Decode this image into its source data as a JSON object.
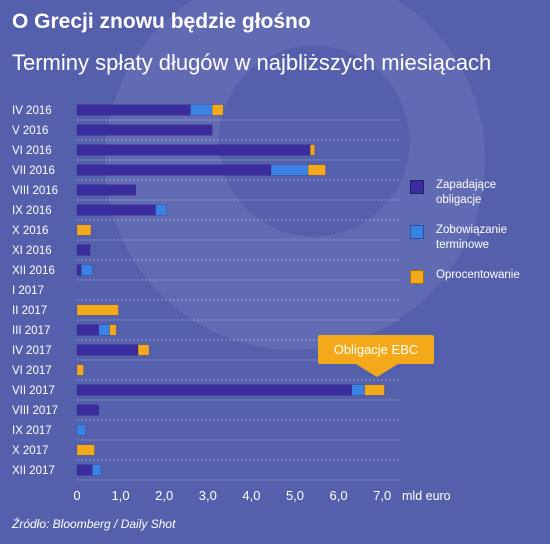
{
  "header": {
    "title": "O Grecji znowu będzie głośno",
    "subtitle": "Terminy spłaty długów w najbliższych miesiącach"
  },
  "source": "Źródło: Bloomberg / Daily Shot",
  "callout": "Obligacje EBC",
  "colors": {
    "background": "#5560ad",
    "Zapadające obligacje": "#3b2c9f",
    "Zobowiązanie terminowe": "#3a82e6",
    "Oprocentowanie": "#f4a91b"
  },
  "chart_data": {
    "type": "bar",
    "orientation": "horizontal",
    "stacked": true,
    "categories": [
      "IV 2016",
      "V 2016",
      "VI 2016",
      "VII 2016",
      "VIII 2016",
      "IX 2016",
      "X 2016",
      "XI 2016",
      "XII 2016",
      "I 2017",
      "II 2017",
      "III 2017",
      "IV 2017",
      "VI 2017",
      "VII 2017",
      "VIII 2017",
      "IX 2017",
      "X 2017",
      "XII 2017"
    ],
    "series": [
      {
        "name": "Zapadające obligacje",
        "values": [
          2.6,
          3.1,
          5.35,
          4.45,
          1.35,
          1.8,
          0,
          0.3,
          0.1,
          0,
          0,
          0.5,
          1.4,
          0,
          6.3,
          0.5,
          0,
          0,
          0.35
        ]
      },
      {
        "name": "Zobowiązanie terminowe",
        "values": [
          0.5,
          0,
          0,
          0.85,
          0,
          0.25,
          0,
          0,
          0.25,
          0,
          0,
          0.25,
          0,
          0,
          0.3,
          0,
          0.2,
          0,
          0.2
        ]
      },
      {
        "name": "Oprocentowanie",
        "values": [
          0.25,
          0,
          0.1,
          0.4,
          0,
          0,
          0.32,
          0,
          0,
          0,
          0.95,
          0.15,
          0.25,
          0.15,
          0.45,
          0,
          0,
          0.4,
          0
        ]
      }
    ],
    "xlim": [
      0,
      7.0
    ],
    "xticks": [
      "0",
      "1,0",
      "2,0",
      "3,0",
      "4,0",
      "5,0",
      "6,0",
      "7,0"
    ],
    "xunit": "mld euro",
    "grid": true,
    "legend": "right"
  }
}
